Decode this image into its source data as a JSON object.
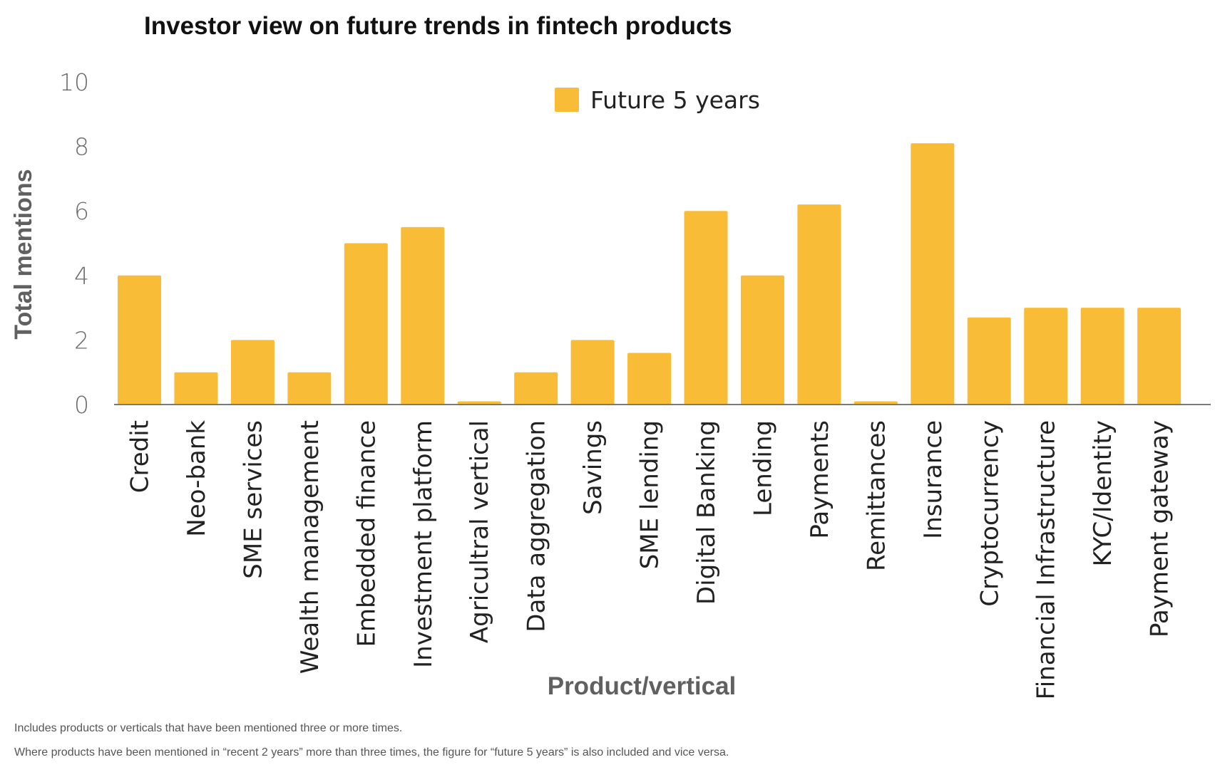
{
  "chart_data": {
    "type": "bar",
    "title": "Investor view on future trends in fintech products",
    "xlabel": "Product/vertical",
    "ylabel": "Total mentions",
    "ylim": [
      0,
      10
    ],
    "yticks": [
      0,
      2,
      4,
      6,
      8,
      10
    ],
    "grid": false,
    "legend_position": "top-center",
    "bar_color": "#F9BC36",
    "categories": [
      "Credit",
      "Neo-bank",
      "SME services",
      "Wealth management",
      "Embedded finance",
      "Investment platform",
      "Agricultral vertical",
      "Data aggregation",
      "Savings",
      "SME lending",
      "Digital Banking",
      "Lending",
      "Payments",
      "Remittances",
      "Insurance",
      "Cryptocurrency",
      "Financial Infrastructure",
      "KYC/Identity",
      "Payment gateway"
    ],
    "series": [
      {
        "name": "Future 5 years",
        "values": [
          4,
          1,
          2,
          1,
          5,
          5.5,
          0.1,
          1,
          2,
          1.6,
          6,
          4,
          6.2,
          0.1,
          8.1,
          2.7,
          3,
          3,
          3
        ]
      }
    ]
  },
  "notes": [
    "Includes products  or verticals that have been mentioned three or more times.",
    "Where products have been mentioned in “recent 2 years” more than three times, the figure for “future 5 years” is also included and vice versa."
  ]
}
